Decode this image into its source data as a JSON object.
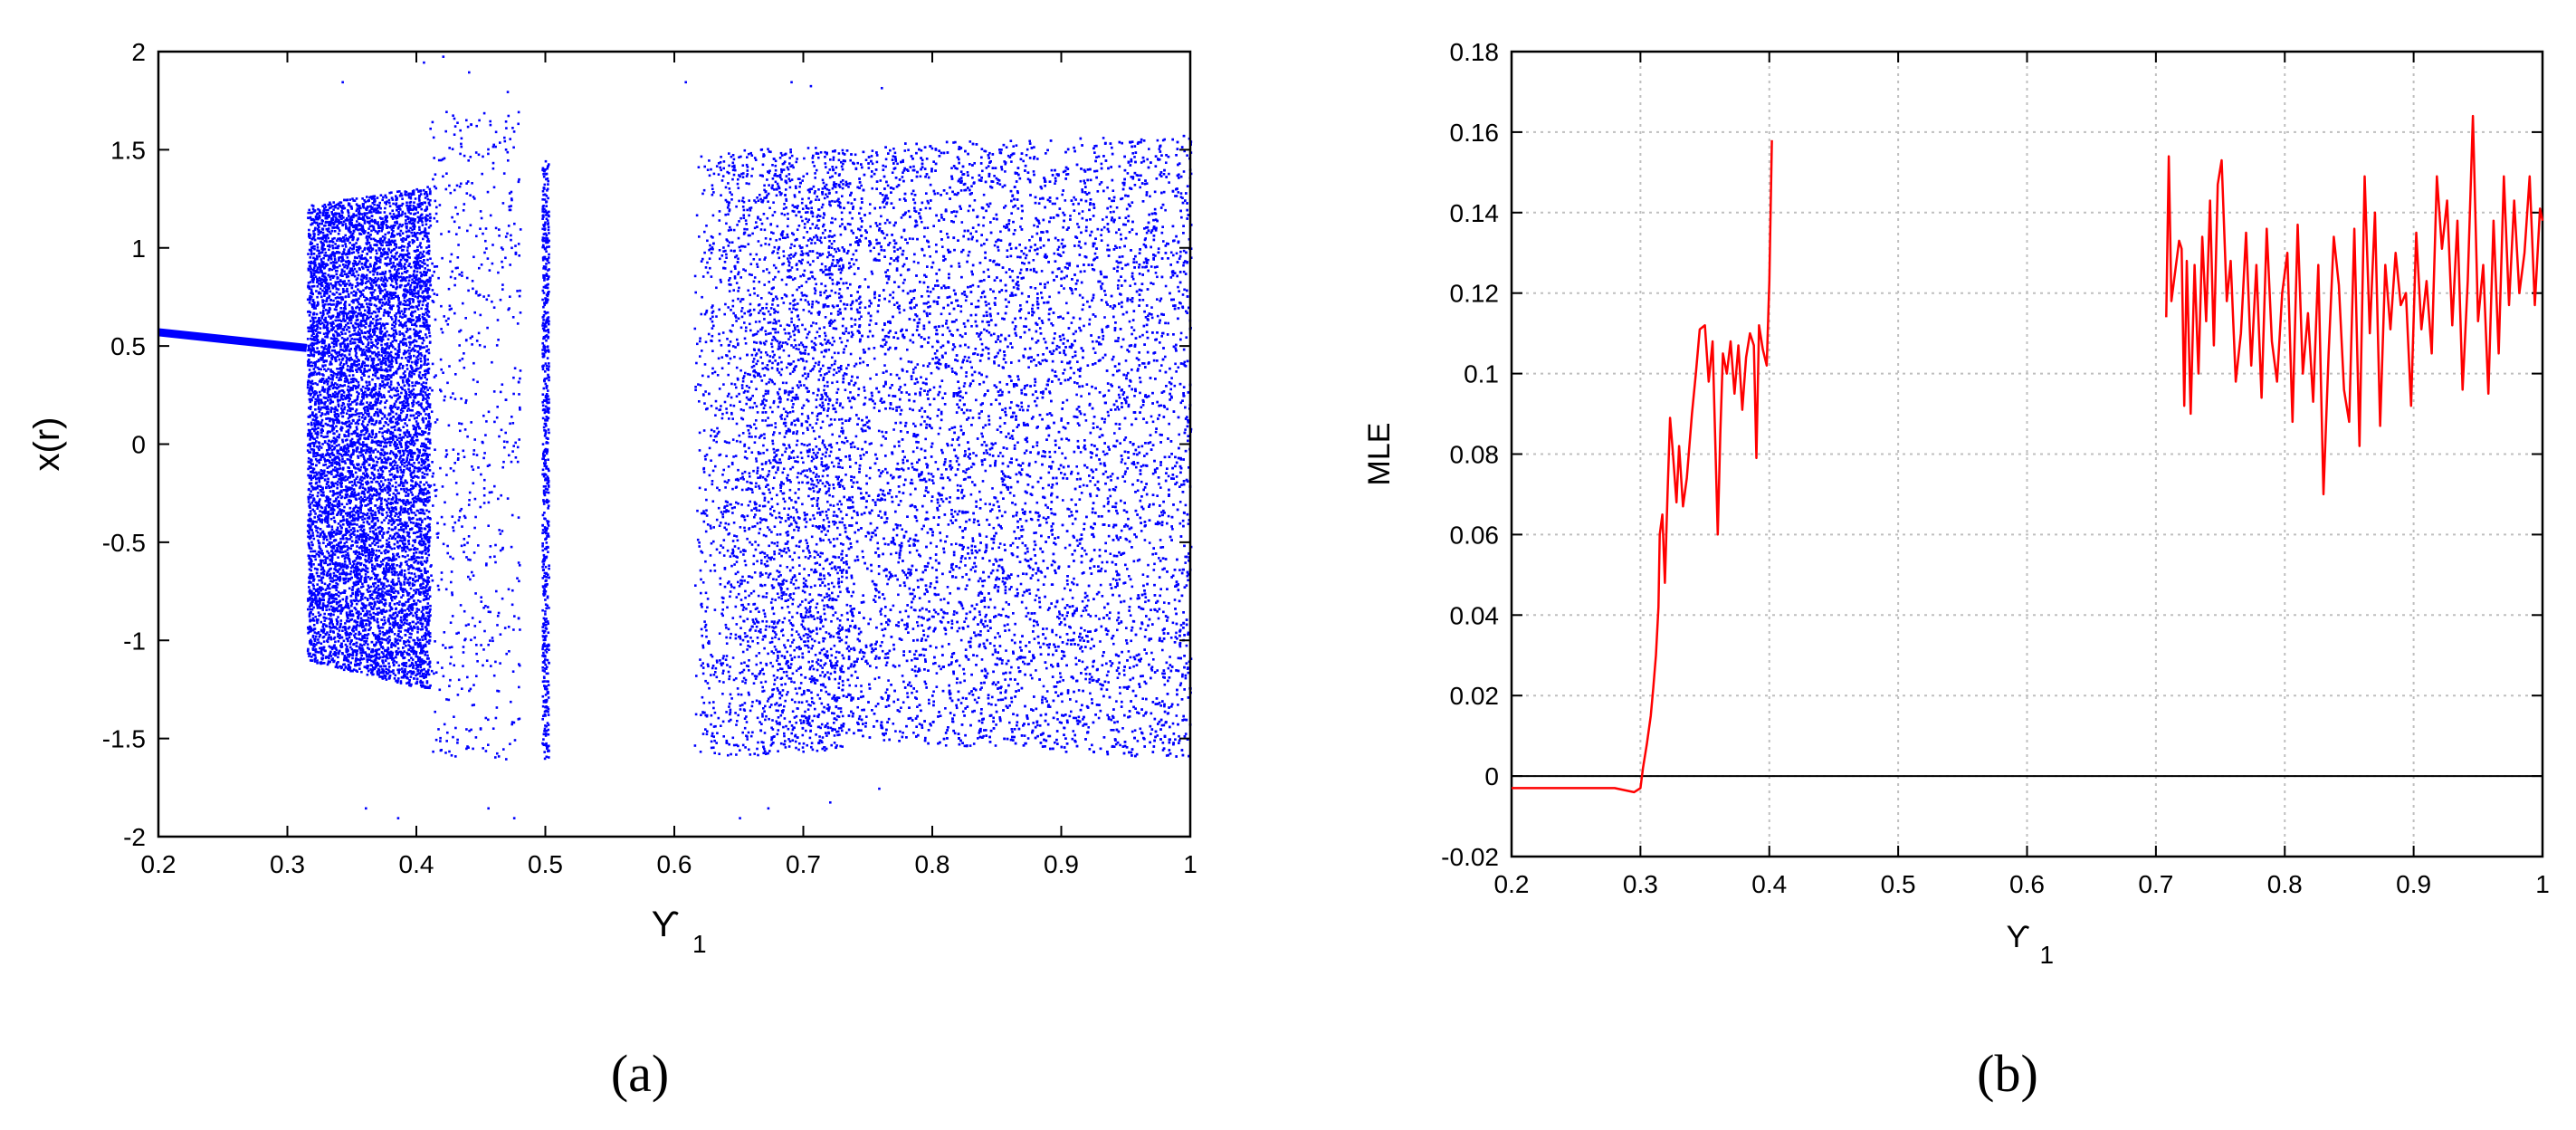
{
  "colors": {
    "scatter": "#0000ff",
    "line": "#ff0000",
    "axis": "#000000",
    "grid": "#bfbfbf",
    "zero_line": "#000000"
  },
  "panels": {
    "a": {
      "label": "(a)"
    },
    "b": {
      "label": "(b)"
    }
  },
  "chart_data": [
    {
      "panel": "a",
      "type": "scatter",
      "title": "",
      "xlabel": "ϒ",
      "xlabel_subscript": "1",
      "ylabel": "x(r)",
      "xlim": [
        0.2,
        1
      ],
      "ylim": [
        -2,
        2
      ],
      "xticks": [
        0.2,
        0.3,
        0.4,
        0.5,
        0.6,
        0.7,
        0.8,
        0.9,
        1
      ],
      "xtick_labels": [
        "0.2",
        "0.3",
        "0.4",
        "0.5",
        "0.6",
        "0.7",
        "0.8",
        "0.9",
        "1"
      ],
      "yticks": [
        -2,
        -1.5,
        -1,
        -0.5,
        0,
        0.5,
        1,
        1.5,
        2
      ],
      "ytick_labels": [
        "-2",
        "-1.5",
        "-1",
        "-0.5",
        "0",
        "0.5",
        "1",
        "1.5",
        "2"
      ],
      "grid": false,
      "periodic_branch": {
        "x": [
          0.2,
          0.315
        ],
        "y": [
          0.57,
          0.49
        ]
      },
      "chaotic_bands": [
        {
          "x": [
            0.315,
            0.41
          ],
          "y_min": [
            -1.1,
            -1.25
          ],
          "y_max": [
            1.22,
            1.32
          ],
          "density": "high"
        },
        {
          "x": [
            0.41,
            0.48
          ],
          "y_min": [
            -1.6,
            -1.6
          ],
          "y_max": [
            1.7,
            1.7
          ],
          "density": "sparse"
        },
        {
          "x": [
            0.497,
            0.502
          ],
          "y_min": [
            -1.6,
            -1.6
          ],
          "y_max": [
            1.45,
            1.45
          ],
          "density": "sparse"
        },
        {
          "x": [
            0.615,
            0.73
          ],
          "y_min": [
            -1.6,
            -1.55
          ],
          "y_max": [
            1.5,
            1.52
          ],
          "density": "medium"
        },
        {
          "x": [
            0.73,
            1.0
          ],
          "y_min": [
            -1.5,
            -1.6
          ],
          "y_max": [
            1.53,
            1.58
          ],
          "density": "high"
        }
      ],
      "scattered_outliers": [
        [
          0.342,
          1.85
        ],
        [
          0.36,
          -1.85
        ],
        [
          0.385,
          -1.9
        ],
        [
          0.405,
          1.95
        ],
        [
          0.42,
          1.98
        ],
        [
          0.44,
          1.9
        ],
        [
          0.455,
          -1.85
        ],
        [
          0.47,
          1.8
        ],
        [
          0.475,
          -1.9
        ],
        [
          0.608,
          1.85
        ],
        [
          0.65,
          -1.9
        ],
        [
          0.672,
          -1.85
        ],
        [
          0.69,
          1.85
        ],
        [
          0.705,
          1.83
        ],
        [
          0.72,
          -1.82
        ],
        [
          0.758,
          -1.75
        ],
        [
          0.76,
          1.82
        ]
      ]
    },
    {
      "panel": "b",
      "type": "line",
      "title": "",
      "xlabel": "ϒ",
      "xlabel_subscript": "1",
      "ylabel": "MLE",
      "xlim": [
        0.2,
        1
      ],
      "ylim": [
        -0.02,
        0.18
      ],
      "xticks": [
        0.2,
        0.3,
        0.4,
        0.5,
        0.6,
        0.7,
        0.8,
        0.9,
        1
      ],
      "xtick_labels": [
        "0.2",
        "0.3",
        "0.4",
        "0.5",
        "0.6",
        "0.7",
        "0.8",
        "0.9",
        "1"
      ],
      "yticks": [
        -0.02,
        0,
        0.02,
        0.04,
        0.06,
        0.08,
        0.1,
        0.12,
        0.14,
        0.16,
        0.18
      ],
      "ytick_labels": [
        "-0.02",
        "0",
        "0.02",
        "0.04",
        "0.06",
        "0.08",
        "0.1",
        "0.12",
        "0.14",
        "0.16",
        "0.18"
      ],
      "grid": true,
      "zero_line": 0,
      "series": [
        {
          "x": [
            0.2,
            0.22,
            0.24,
            0.26,
            0.28,
            0.295,
            0.3,
            0.302,
            0.305,
            0.308,
            0.31,
            0.312,
            0.314,
            0.315,
            0.317,
            0.319,
            0.321,
            0.323,
            0.325,
            0.328,
            0.33,
            0.333,
            0.336,
            0.34,
            0.343,
            0.346,
            0.35,
            0.353,
            0.356,
            0.36,
            0.362,
            0.364,
            0.367,
            0.37,
            0.373,
            0.376,
            0.379,
            0.382,
            0.385,
            0.388,
            0.39,
            0.392,
            0.395,
            0.398,
            0.4,
            0.402
          ],
          "y": [
            -0.003,
            -0.003,
            -0.003,
            -0.003,
            -0.003,
            -0.004,
            -0.003,
            0.002,
            0.008,
            0.015,
            0.022,
            0.03,
            0.042,
            0.06,
            0.065,
            0.048,
            0.07,
            0.089,
            0.081,
            0.068,
            0.082,
            0.067,
            0.074,
            0.09,
            0.1,
            0.111,
            0.112,
            0.098,
            0.108,
            0.06,
            0.085,
            0.105,
            0.1,
            0.108,
            0.095,
            0.107,
            0.091,
            0.104,
            0.11,
            0.107,
            0.079,
            0.112,
            0.106,
            0.102,
            0.123,
            0.158
          ]
        },
        {
          "x": [
            0.708,
            0.71,
            0.712,
            0.718,
            0.72,
            0.722,
            0.724,
            0.727,
            0.73,
            0.733,
            0.736,
            0.739,
            0.742,
            0.745,
            0.748,
            0.751,
            0.755,
            0.758,
            0.762,
            0.766,
            0.77,
            0.774,
            0.778,
            0.782,
            0.786,
            0.79,
            0.794,
            0.798,
            0.802,
            0.806,
            0.81,
            0.814,
            0.818,
            0.822,
            0.826,
            0.83,
            0.834,
            0.838,
            0.842,
            0.846,
            0.85,
            0.854,
            0.858,
            0.862,
            0.866,
            0.87,
            0.874,
            0.878,
            0.882,
            0.886,
            0.89,
            0.894,
            0.898,
            0.902,
            0.906,
            0.91,
            0.914,
            0.918,
            0.922,
            0.926,
            0.93,
            0.934,
            0.938,
            0.942,
            0.946,
            0.95,
            0.954,
            0.958,
            0.962,
            0.966,
            0.97,
            0.974,
            0.978,
            0.982,
            0.986,
            0.99,
            0.994,
            0.998,
            1.0
          ],
          "y": [
            0.114,
            0.154,
            0.118,
            0.133,
            0.131,
            0.092,
            0.128,
            0.09,
            0.127,
            0.1,
            0.134,
            0.113,
            0.143,
            0.107,
            0.147,
            0.153,
            0.118,
            0.128,
            0.098,
            0.11,
            0.135,
            0.102,
            0.127,
            0.094,
            0.136,
            0.108,
            0.098,
            0.12,
            0.13,
            0.088,
            0.137,
            0.1,
            0.115,
            0.093,
            0.127,
            0.07,
            0.105,
            0.134,
            0.122,
            0.096,
            0.088,
            0.136,
            0.082,
            0.149,
            0.11,
            0.14,
            0.087,
            0.127,
            0.111,
            0.13,
            0.117,
            0.12,
            0.092,
            0.135,
            0.111,
            0.123,
            0.105,
            0.149,
            0.131,
            0.143,
            0.112,
            0.138,
            0.096,
            0.123,
            0.164,
            0.113,
            0.127,
            0.095,
            0.138,
            0.105,
            0.149,
            0.117,
            0.143,
            0.12,
            0.13,
            0.149,
            0.117,
            0.141,
            0.138
          ]
        }
      ]
    }
  ]
}
